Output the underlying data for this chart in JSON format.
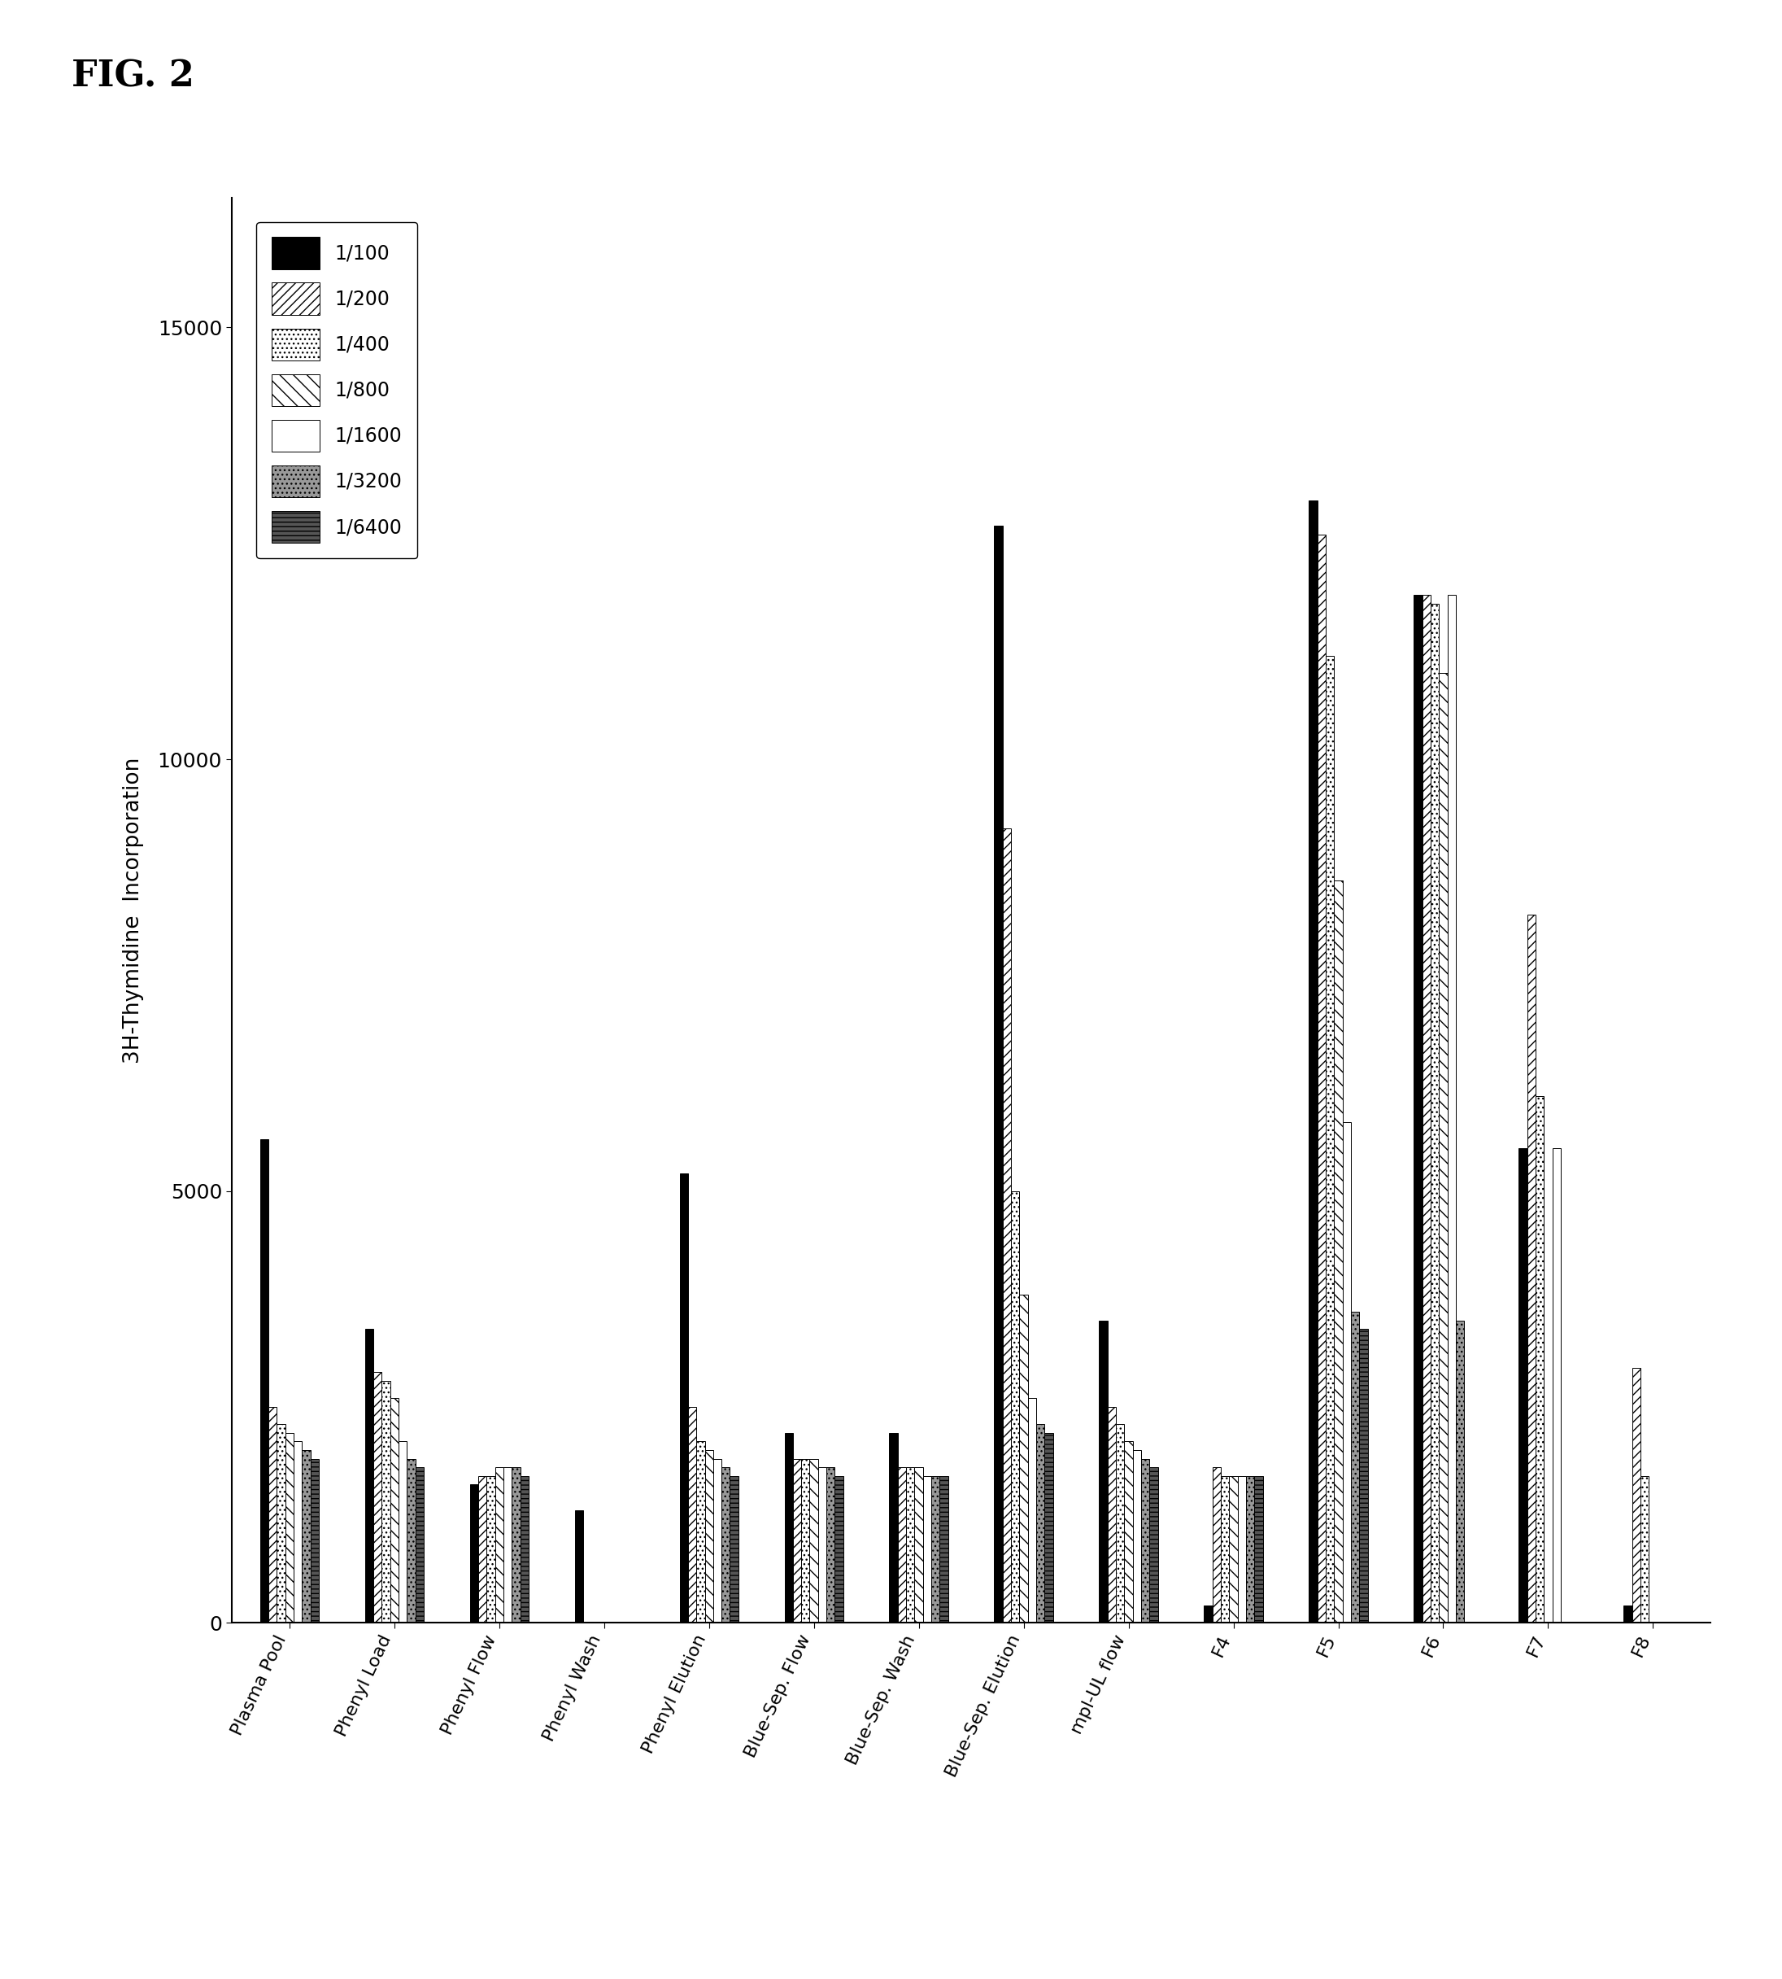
{
  "categories": [
    "Plasma Pool",
    "Phenyl Load",
    "Phenyl Flow",
    "Phenyl Wash",
    "Phenyl Elution",
    "Blue-Sep. Flow",
    "Blue-Sep. Wash",
    "Blue-Sep. Elution",
    "mpl-UL flow",
    "F4",
    "F5",
    "F6",
    "F7",
    "F8"
  ],
  "series_labels": [
    "1/100",
    "1/200",
    "1/400",
    "1/800",
    "1/1600",
    "1/3200",
    "1/6400"
  ],
  "ylabel_top": "Incorporation",
  "ylabel_bottom": "3H-Thymidine",
  "fig_label": "FIG. 2",
  "ylim": [
    0,
    16500
  ],
  "yticks": [
    0,
    5000,
    10000,
    15000
  ],
  "values": [
    [
      5600,
      3400,
      1600,
      1300,
      5200,
      2200,
      2200,
      12700,
      3500,
      200,
      13000,
      11900,
      5500,
      200
    ],
    [
      2500,
      2900,
      1700,
      0,
      2500,
      1900,
      1800,
      9200,
      2500,
      1800,
      12600,
      11900,
      8200,
      2950
    ],
    [
      2300,
      2800,
      1700,
      0,
      2100,
      1900,
      1800,
      5000,
      2300,
      1700,
      11200,
      11800,
      6100,
      1700
    ],
    [
      2200,
      2600,
      1800,
      0,
      2000,
      1900,
      1800,
      3800,
      2100,
      1700,
      8600,
      11000,
      0,
      0
    ],
    [
      2100,
      2100,
      1800,
      0,
      1900,
      1800,
      1700,
      2600,
      2000,
      1700,
      5800,
      11900,
      5500,
      0
    ],
    [
      2000,
      1900,
      1800,
      0,
      1800,
      1800,
      1700,
      2300,
      1900,
      1700,
      3600,
      3500,
      0,
      0
    ],
    [
      1900,
      1800,
      1700,
      0,
      1700,
      1700,
      1700,
      2200,
      1800,
      1700,
      3400,
      0,
      0,
      0
    ]
  ],
  "bar_width": 0.08,
  "background_color": "#ffffff"
}
